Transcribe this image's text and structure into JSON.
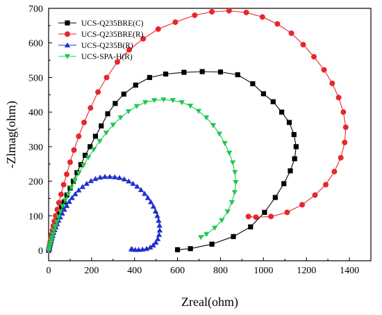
{
  "chart_data": {
    "type": "scatter",
    "xlabel": "Zreal(ohm)",
    "ylabel": "-Zlmag(ohm)",
    "xlim": [
      0,
      1500
    ],
    "ylim": [
      -30,
      700
    ],
    "xticks": [
      0,
      200,
      400,
      600,
      800,
      1000,
      1200,
      1400
    ],
    "yticks": [
      0,
      100,
      200,
      300,
      400,
      500,
      600,
      700
    ],
    "grid": false,
    "legend_position": "top-left",
    "series": [
      {
        "name": "UCS-Q235BRE(C)",
        "color": "#000000",
        "marker": "square",
        "points": [
          [
            0,
            0
          ],
          [
            2,
            5
          ],
          [
            4,
            10
          ],
          [
            6,
            15
          ],
          [
            8,
            20
          ],
          [
            10,
            27
          ],
          [
            13,
            35
          ],
          [
            16,
            43
          ],
          [
            20,
            52
          ],
          [
            24,
            62
          ],
          [
            29,
            72
          ],
          [
            35,
            83
          ],
          [
            42,
            96
          ],
          [
            50,
            110
          ],
          [
            60,
            125
          ],
          [
            72,
            140
          ],
          [
            85,
            160
          ],
          [
            100,
            180
          ],
          [
            115,
            200
          ],
          [
            132,
            225
          ],
          [
            150,
            248
          ],
          [
            170,
            275
          ],
          [
            193,
            300
          ],
          [
            218,
            330
          ],
          [
            245,
            360
          ],
          [
            275,
            395
          ],
          [
            310,
            425
          ],
          [
            350,
            452
          ],
          [
            405,
            478
          ],
          [
            470,
            500
          ],
          [
            545,
            510
          ],
          [
            630,
            515
          ],
          [
            715,
            517
          ],
          [
            800,
            516
          ],
          [
            880,
            508
          ],
          [
            950,
            482
          ],
          [
            1000,
            453
          ],
          [
            1045,
            430
          ],
          [
            1085,
            400
          ],
          [
            1120,
            370
          ],
          [
            1142,
            335
          ],
          [
            1152,
            300
          ],
          [
            1145,
            265
          ],
          [
            1125,
            230
          ],
          [
            1095,
            193
          ],
          [
            1055,
            153
          ],
          [
            1005,
            110
          ],
          [
            940,
            68
          ],
          [
            860,
            40
          ],
          [
            760,
            18
          ],
          [
            660,
            5
          ],
          [
            600,
            2
          ]
        ]
      },
      {
        "name": "UCS-Q235BRE(R)",
        "color": "#e8262c",
        "marker": "circle",
        "points": [
          [
            0,
            0
          ],
          [
            2,
            5
          ],
          [
            4,
            12
          ],
          [
            6,
            19
          ],
          [
            8,
            27
          ],
          [
            11,
            36
          ],
          [
            14,
            46
          ],
          [
            18,
            58
          ],
          [
            22,
            71
          ],
          [
            27,
            85
          ],
          [
            33,
            100
          ],
          [
            40,
            118
          ],
          [
            48,
            138
          ],
          [
            58,
            162
          ],
          [
            70,
            190
          ],
          [
            84,
            220
          ],
          [
            100,
            255
          ],
          [
            118,
            290
          ],
          [
            140,
            330
          ],
          [
            165,
            370
          ],
          [
            195,
            412
          ],
          [
            230,
            458
          ],
          [
            270,
            500
          ],
          [
            320,
            545
          ],
          [
            375,
            580
          ],
          [
            440,
            612
          ],
          [
            510,
            640
          ],
          [
            590,
            660
          ],
          [
            680,
            680
          ],
          [
            760,
            690
          ],
          [
            840,
            693
          ],
          [
            920,
            688
          ],
          [
            995,
            675
          ],
          [
            1065,
            655
          ],
          [
            1130,
            628
          ],
          [
            1185,
            595
          ],
          [
            1235,
            560
          ],
          [
            1282,
            522
          ],
          [
            1320,
            483
          ],
          [
            1350,
            442
          ],
          [
            1372,
            400
          ],
          [
            1383,
            356
          ],
          [
            1378,
            312
          ],
          [
            1360,
            268
          ],
          [
            1330,
            228
          ],
          [
            1290,
            190
          ],
          [
            1240,
            160
          ],
          [
            1180,
            132
          ],
          [
            1110,
            110
          ],
          [
            1035,
            98
          ],
          [
            965,
            96
          ],
          [
            930,
            98
          ]
        ]
      },
      {
        "name": "UCS-Q235B(R)",
        "color": "#1f2fcc",
        "marker": "triangle-up",
        "points": [
          [
            0,
            0
          ],
          [
            2,
            5
          ],
          [
            4,
            10
          ],
          [
            6,
            16
          ],
          [
            9,
            22
          ],
          [
            12,
            29
          ],
          [
            15,
            36
          ],
          [
            19,
            43
          ],
          [
            23,
            51
          ],
          [
            28,
            59
          ],
          [
            33,
            67
          ],
          [
            39,
            76
          ],
          [
            46,
            86
          ],
          [
            54,
            96
          ],
          [
            63,
            107
          ],
          [
            73,
            118
          ],
          [
            84,
            129
          ],
          [
            96,
            141
          ],
          [
            109,
            152
          ],
          [
            124,
            163
          ],
          [
            140,
            174
          ],
          [
            158,
            184
          ],
          [
            177,
            193
          ],
          [
            197,
            201
          ],
          [
            218,
            207
          ],
          [
            240,
            211
          ],
          [
            262,
            213
          ],
          [
            285,
            213
          ],
          [
            308,
            212
          ],
          [
            330,
            210
          ],
          [
            352,
            206
          ],
          [
            373,
            200
          ],
          [
            393,
            193
          ],
          [
            412,
            185
          ],
          [
            430,
            175
          ],
          [
            447,
            164
          ],
          [
            462,
            152
          ],
          [
            476,
            140
          ],
          [
            488,
            127
          ],
          [
            498,
            113
          ],
          [
            506,
            100
          ],
          [
            512,
            86
          ],
          [
            516,
            72
          ],
          [
            517,
            58
          ],
          [
            514,
            45
          ],
          [
            508,
            33
          ],
          [
            499,
            23
          ],
          [
            487,
            15
          ],
          [
            473,
            9
          ],
          [
            456,
            5
          ],
          [
            437,
            3
          ],
          [
            419,
            2
          ],
          [
            403,
            2
          ],
          [
            389,
            3
          ],
          [
            385,
            4
          ]
        ]
      },
      {
        "name": "UCS-SPA-H(R)",
        "color": "#1ec94c",
        "marker": "triangle-down",
        "points": [
          [
            0,
            0
          ],
          [
            3,
            6
          ],
          [
            6,
            13
          ],
          [
            9,
            20
          ],
          [
            12,
            28
          ],
          [
            16,
            37
          ],
          [
            20,
            47
          ],
          [
            25,
            58
          ],
          [
            31,
            70
          ],
          [
            38,
            83
          ],
          [
            46,
            97
          ],
          [
            55,
            112
          ],
          [
            65,
            128
          ],
          [
            77,
            145
          ],
          [
            90,
            163
          ],
          [
            105,
            182
          ],
          [
            122,
            202
          ],
          [
            141,
            224
          ],
          [
            162,
            246
          ],
          [
            185,
            269
          ],
          [
            210,
            292
          ],
          [
            238,
            316
          ],
          [
            268,
            340
          ],
          [
            300,
            363
          ],
          [
            335,
            384
          ],
          [
            372,
            402
          ],
          [
            410,
            417
          ],
          [
            450,
            428
          ],
          [
            492,
            434
          ],
          [
            535,
            436
          ],
          [
            578,
            434
          ],
          [
            620,
            428
          ],
          [
            660,
            418
          ],
          [
            698,
            403
          ],
          [
            734,
            384
          ],
          [
            766,
            362
          ],
          [
            795,
            337
          ],
          [
            820,
            310
          ],
          [
            841,
            282
          ],
          [
            857,
            254
          ],
          [
            867,
            226
          ],
          [
            871,
            197
          ],
          [
            866,
            168
          ],
          [
            853,
            139
          ],
          [
            833,
            112
          ],
          [
            806,
            87
          ],
          [
            773,
            65
          ],
          [
            735,
            47
          ],
          [
            709,
            38
          ]
        ]
      }
    ]
  }
}
